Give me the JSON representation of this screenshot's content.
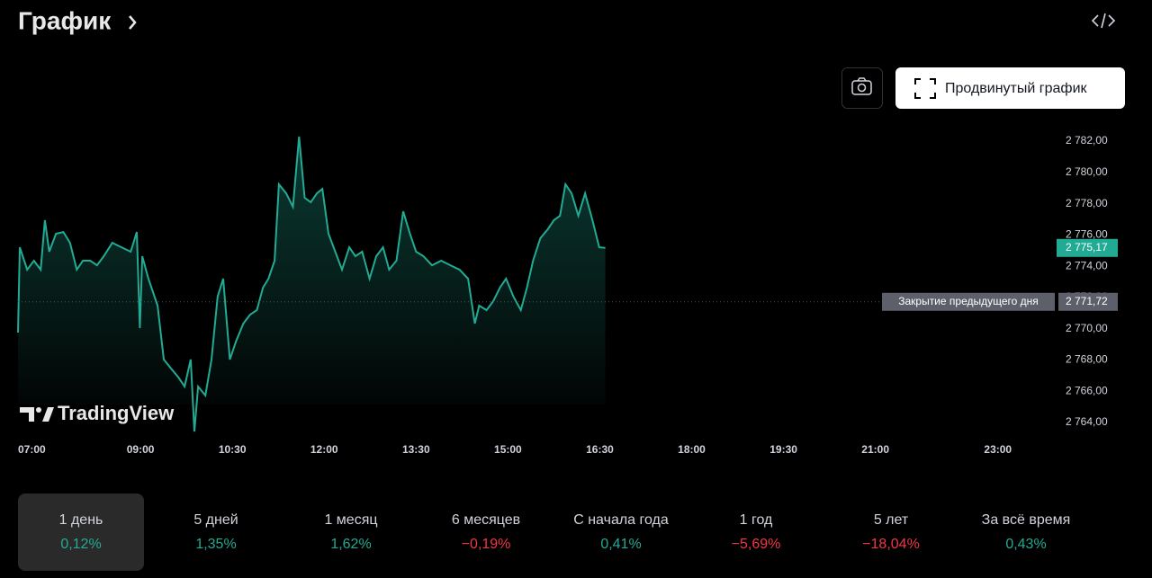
{
  "header": {
    "title": "График"
  },
  "toolbar": {
    "advanced_chart": "Продвинутый график"
  },
  "chart_data": {
    "type": "area",
    "x": [
      7.0,
      7.03,
      7.15,
      7.26,
      7.37,
      7.44,
      7.51,
      7.62,
      7.74,
      7.85,
      7.96,
      8.06,
      8.18,
      8.29,
      8.4,
      8.54,
      8.69,
      8.84,
      8.94,
      8.99,
      9.03,
      9.13,
      9.28,
      9.38,
      9.5,
      9.62,
      9.72,
      9.82,
      9.88,
      9.94,
      10.06,
      10.16,
      10.26,
      10.35,
      10.46,
      10.56,
      10.68,
      10.79,
      10.9,
      11.0,
      11.09,
      11.19,
      11.26,
      11.38,
      11.49,
      11.59,
      11.68,
      11.78,
      11.88,
      11.97,
      12.07,
      12.18,
      12.29,
      12.41,
      12.51,
      12.62,
      12.74,
      12.85,
      12.96,
      13.06,
      13.18,
      13.29,
      13.4,
      13.5,
      13.62,
      13.76,
      13.91,
      14.06,
      14.21,
      14.35,
      14.46,
      14.53,
      14.65,
      14.76,
      14.87,
      14.97,
      15.09,
      15.21,
      15.31,
      15.41,
      15.53,
      15.65,
      15.75,
      15.85,
      15.94,
      16.04,
      16.15,
      16.26,
      16.38,
      16.49,
      16.59
    ],
    "series": [
      {
        "color": "#22ab94",
        "values": [
          2769.75,
          2775.21,
          2773.78,
          2774.35,
          2773.78,
          2776.94,
          2774.93,
          2776.08,
          2776.19,
          2775.5,
          2773.78,
          2774.35,
          2774.35,
          2774.06,
          2774.64,
          2775.5,
          2775.21,
          2774.93,
          2776.19,
          2770.04,
          2774.64,
          2773.2,
          2771.48,
          2768.03,
          2767.45,
          2766.88,
          2766.3,
          2768.03,
          2763.42,
          2766.3,
          2765.73,
          2768.03,
          2772.05,
          2773.2,
          2768.03,
          2769.18,
          2770.33,
          2770.9,
          2771.19,
          2772.63,
          2773.2,
          2774.35,
          2779.24,
          2778.66,
          2777.8,
          2782.29,
          2778.38,
          2778.09,
          2778.66,
          2778.95,
          2776.08,
          2774.93,
          2773.78,
          2775.21,
          2774.64,
          2774.93,
          2773.2,
          2774.64,
          2775.21,
          2773.78,
          2774.35,
          2777.51,
          2776.08,
          2774.93,
          2774.64,
          2774.06,
          2774.35,
          2774.06,
          2773.78,
          2773.2,
          2770.33,
          2771.48,
          2771.19,
          2771.76,
          2772.63,
          2773.2,
          2772.05,
          2771.19,
          2772.63,
          2774.35,
          2775.79,
          2776.36,
          2776.94,
          2777.23,
          2779.24,
          2778.66,
          2777.23,
          2778.66,
          2776.94,
          2775.21,
          2775.17
        ]
      }
    ],
    "xlim": [
      7,
      23.9
    ],
    "ylim": [
      2762.85,
      2782.98
    ],
    "xticks": [
      {
        "value": 7,
        "label": "07:00"
      },
      {
        "value": 9,
        "label": "09:00"
      },
      {
        "value": 10.5,
        "label": "10:30"
      },
      {
        "value": 12,
        "label": "12:00"
      },
      {
        "value": 13.5,
        "label": "13:30"
      },
      {
        "value": 15,
        "label": "15:00"
      },
      {
        "value": 16.5,
        "label": "16:30"
      },
      {
        "value": 18,
        "label": "18:00"
      },
      {
        "value": 19.5,
        "label": "19:30"
      },
      {
        "value": 21,
        "label": "21:00"
      },
      {
        "value": 23,
        "label": "23:00"
      }
    ],
    "yticks": [
      {
        "value": 2764,
        "label": "2 764,00"
      },
      {
        "value": 2766,
        "label": "2 766,00"
      },
      {
        "value": 2768,
        "label": "2 768,00"
      },
      {
        "value": 2770,
        "label": "2 770,00"
      },
      {
        "value": 2772,
        "label": "2 772,00"
      },
      {
        "value": 2774,
        "label": "2 774,00"
      },
      {
        "value": 2776,
        "label": "2 776,00"
      },
      {
        "value": 2778,
        "label": "2 778,00"
      },
      {
        "value": 2780,
        "label": "2 780,00"
      },
      {
        "value": 2782,
        "label": "2 782,00"
      }
    ],
    "last_price": {
      "value": 2775.17,
      "label": "2 775,17"
    },
    "prev_close": {
      "value": 2771.72,
      "label": "2 771,72",
      "caption": "Закрытие предыдущего дня"
    },
    "watermark": "TradingView"
  },
  "periods": [
    {
      "label": "1 день",
      "change": "0,12%",
      "selected": true
    },
    {
      "label": "5 дней",
      "change": "1,35%"
    },
    {
      "label": "1 месяц",
      "change": "1,62%"
    },
    {
      "label": "6 месяцев",
      "change": "−0,19%"
    },
    {
      "label": "С начала года",
      "change": "0,41%"
    },
    {
      "label": "1 год",
      "change": "−5,69%"
    },
    {
      "label": "5 лет",
      "change": "−18,04%"
    },
    {
      "label": "За всё время",
      "change": "0,43%"
    }
  ]
}
